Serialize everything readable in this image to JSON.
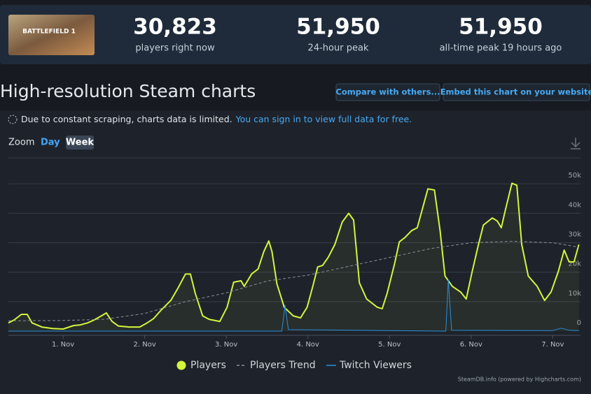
{
  "header": {
    "game_image_text": "BATTLEFIELD 1",
    "stats": [
      {
        "value": "30,823",
        "label": "players right now"
      },
      {
        "value": "51,950",
        "label": "24-hour peak"
      },
      {
        "value": "51,950",
        "label": "all-time peak 19 hours ago"
      }
    ]
  },
  "page": {
    "title": "High-resolution Steam charts",
    "buttons": [
      "Compare with others...",
      "Embed this chart on your website"
    ],
    "notice": "Due to constant scraping, charts data is limited.",
    "notice_link": "You can sign in to view full data for free.",
    "zoom_label": "Zoom",
    "zoom_options": [
      "Day",
      "Week"
    ],
    "credits": "SteamDB.info (powered by Highcharts.com)"
  },
  "chart_data": {
    "type": "line",
    "grid": true,
    "xlim": [
      0.33,
      7.34
    ],
    "xticks": [
      {
        "value": 1,
        "label": "1. Nov"
      },
      {
        "value": 2,
        "label": "2. Nov"
      },
      {
        "value": 3,
        "label": "3. Nov"
      },
      {
        "value": 4,
        "label": "4. Nov"
      },
      {
        "value": 5,
        "label": "5. Nov"
      },
      {
        "value": 6,
        "label": "6. Nov"
      },
      {
        "value": 7,
        "label": "7. Nov"
      }
    ],
    "ylim": [
      0,
      58800
    ],
    "yticks": [
      0,
      {
        "value": 10000,
        "label": "10k"
      },
      {
        "value": 20000,
        "label": "20k"
      },
      {
        "value": 30000,
        "label": "30k"
      },
      {
        "value": 40000,
        "label": "40k"
      },
      {
        "value": 50000,
        "label": "50k"
      }
    ],
    "series": [
      {
        "name": "Players",
        "color": "#d4f53c",
        "dashed": false,
        "x": [
          0.33,
          0.4,
          0.49,
          0.56,
          0.62,
          0.74,
          0.87,
          1.0,
          1.13,
          1.21,
          1.3,
          1.38,
          1.47,
          1.53,
          1.6,
          1.68,
          1.81,
          1.94,
          2.03,
          2.11,
          2.2,
          2.32,
          2.41,
          2.5,
          2.56,
          2.62,
          2.71,
          2.79,
          2.92,
          3.01,
          3.09,
          3.18,
          3.22,
          3.31,
          3.39,
          3.46,
          3.52,
          3.56,
          3.62,
          3.71,
          3.82,
          3.91,
          3.99,
          4.06,
          4.12,
          4.18,
          4.25,
          4.33,
          4.42,
          4.5,
          4.56,
          4.63,
          4.72,
          4.85,
          4.91,
          4.97,
          5.06,
          5.12,
          5.19,
          5.27,
          5.34,
          5.4,
          5.47,
          5.55,
          5.62,
          5.68,
          5.77,
          5.87,
          5.94,
          6.01,
          6.09,
          6.15,
          6.26,
          6.32,
          6.37,
          6.42,
          6.5,
          6.56,
          6.62,
          6.7,
          6.81,
          6.9,
          6.98,
          7.07,
          7.14,
          7.2,
          7.26,
          7.32
        ],
        "values": [
          2800,
          3800,
          5700,
          5700,
          2800,
          1400,
          900,
          700,
          1900,
          2100,
          2800,
          3800,
          5200,
          6200,
          3300,
          1700,
          1400,
          1400,
          2800,
          4300,
          7100,
          10400,
          14700,
          19400,
          19400,
          12800,
          5200,
          4000,
          3300,
          8100,
          16600,
          17100,
          15200,
          19400,
          21100,
          27000,
          30600,
          27000,
          16100,
          8100,
          5200,
          4500,
          8100,
          15200,
          21800,
          22300,
          25100,
          29400,
          37000,
          40000,
          37700,
          16400,
          10900,
          8100,
          7600,
          12800,
          22700,
          30300,
          31800,
          34100,
          35100,
          41200,
          48300,
          47900,
          34100,
          18700,
          15200,
          13300,
          10900,
          19900,
          29400,
          36000,
          38400,
          37400,
          35100,
          41200,
          50200,
          49500,
          29400,
          18700,
          15200,
          10400,
          13300,
          20400,
          27500,
          23500,
          23500,
          29400
        ]
      },
      {
        "name": "Players Trend",
        "color": "#8a8f96",
        "dashed": true,
        "x": [
          0.33,
          1.0,
          1.5,
          2.0,
          2.5,
          3.0,
          3.5,
          4.0,
          4.5,
          5.0,
          5.5,
          6.0,
          6.5,
          7.0,
          7.32
        ],
        "values": [
          3500,
          3600,
          4000,
          6000,
          10000,
          13000,
          17000,
          19000,
          22000,
          25000,
          28000,
          30000,
          30500,
          30000,
          28500
        ]
      },
      {
        "name": "Twitch Viewers",
        "color": "#2a8fdb",
        "dashed": false,
        "x": [
          0.33,
          3.68,
          3.72,
          3.76,
          5.69,
          5.72,
          5.76,
          7.0,
          7.1,
          7.2,
          7.32
        ],
        "values": [
          0,
          0,
          8800,
          500,
          0,
          17500,
          300,
          200,
          1000,
          300,
          200
        ]
      }
    ]
  }
}
